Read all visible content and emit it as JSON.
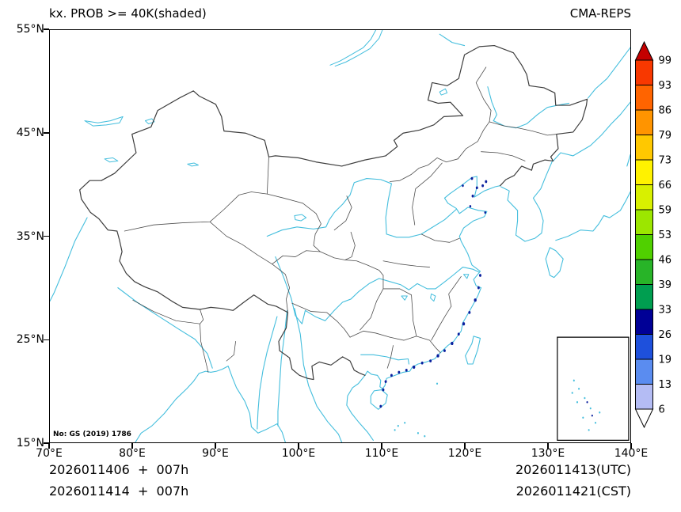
{
  "header": {
    "title": "kx. PROB >= 40K(shaded)",
    "source": "CMA-REPS"
  },
  "axes": {
    "y_labels": [
      "55°N",
      "45°N",
      "35°N",
      "25°N",
      "15°N"
    ],
    "x_labels": [
      "70°E",
      "80°E",
      "90°E",
      "100°E",
      "110°E",
      "120°E",
      "130°E",
      "140°E"
    ]
  },
  "colorbar": {
    "labels": [
      "99",
      "93",
      "86",
      "79",
      "73",
      "66",
      "59",
      "53",
      "46",
      "39",
      "33",
      "26",
      "19",
      "13",
      "6"
    ],
    "colors": [
      "#c40000",
      "#f83800",
      "#ff6400",
      "#ff9400",
      "#ffc800",
      "#fff200",
      "#d8f000",
      "#9ce600",
      "#50d000",
      "#28b428",
      "#009e50",
      "#000096",
      "#1e50dc",
      "#5a8cf0",
      "#b4bcf4",
      "#ffffff"
    ]
  },
  "map": {
    "notice": "No: GS (2019) 1786",
    "colors": {
      "coastline": "#44bedd",
      "border": "#3d3d3d",
      "province": "#4f4f4f",
      "shading": "#0a1f9e",
      "frame": "#000000"
    }
  },
  "footer": {
    "left_line1": "2026011406  +  007h",
    "left_line2": "2026011414  +  007h",
    "right_line1": "2026011413(UTC)",
    "right_line2": "2026011421(CST)"
  }
}
